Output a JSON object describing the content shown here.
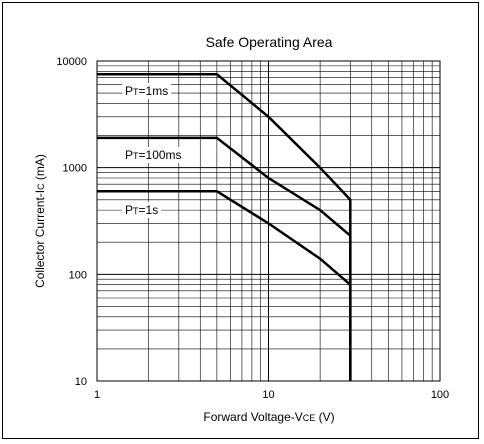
{
  "chart_data": {
    "type": "line",
    "title": "Safe Operating Area",
    "xlabel": {
      "prefix": "Forward Voltage-V",
      "sub": "CE",
      "suffix": " (V)"
    },
    "ylabel": {
      "prefix": "Collector Current-I",
      "sub": "C",
      "suffix": " (mA)"
    },
    "x_scale": "log",
    "y_scale": "log",
    "xlim": [
      1,
      100
    ],
    "ylim": [
      10,
      10000
    ],
    "x_ticks": [
      {
        "value": 1,
        "label": "1"
      },
      {
        "value": 10,
        "label": "10"
      },
      {
        "value": 100,
        "label": "100"
      }
    ],
    "y_ticks": [
      {
        "value": 10,
        "label": "10"
      },
      {
        "value": 100,
        "label": "100"
      },
      {
        "value": 1000,
        "label": "1000"
      },
      {
        "value": 10000,
        "label": "10000"
      }
    ],
    "grid": true,
    "series": [
      {
        "name_prefix": "P",
        "name_sub": "T",
        "name_suffix": "=1ms",
        "points": [
          [
            1,
            7500
          ],
          [
            5,
            7500
          ],
          [
            10,
            3000
          ],
          [
            20,
            1000
          ],
          [
            30,
            500
          ],
          [
            30,
            10
          ]
        ]
      },
      {
        "name_prefix": "P",
        "name_sub": "T",
        "name_suffix": "=100ms",
        "points": [
          [
            1,
            1900
          ],
          [
            5,
            1900
          ],
          [
            10,
            800
          ],
          [
            20,
            400
          ],
          [
            30,
            230
          ],
          [
            30,
            10
          ]
        ]
      },
      {
        "name_prefix": "P",
        "name_sub": "T",
        "name_suffix": "=1s",
        "points": [
          [
            1,
            600
          ],
          [
            5,
            600
          ],
          [
            10,
            300
          ],
          [
            20,
            140
          ],
          [
            30,
            80
          ],
          [
            30,
            10
          ]
        ]
      }
    ],
    "series_color": "#000000",
    "grid_color": "#000000"
  }
}
